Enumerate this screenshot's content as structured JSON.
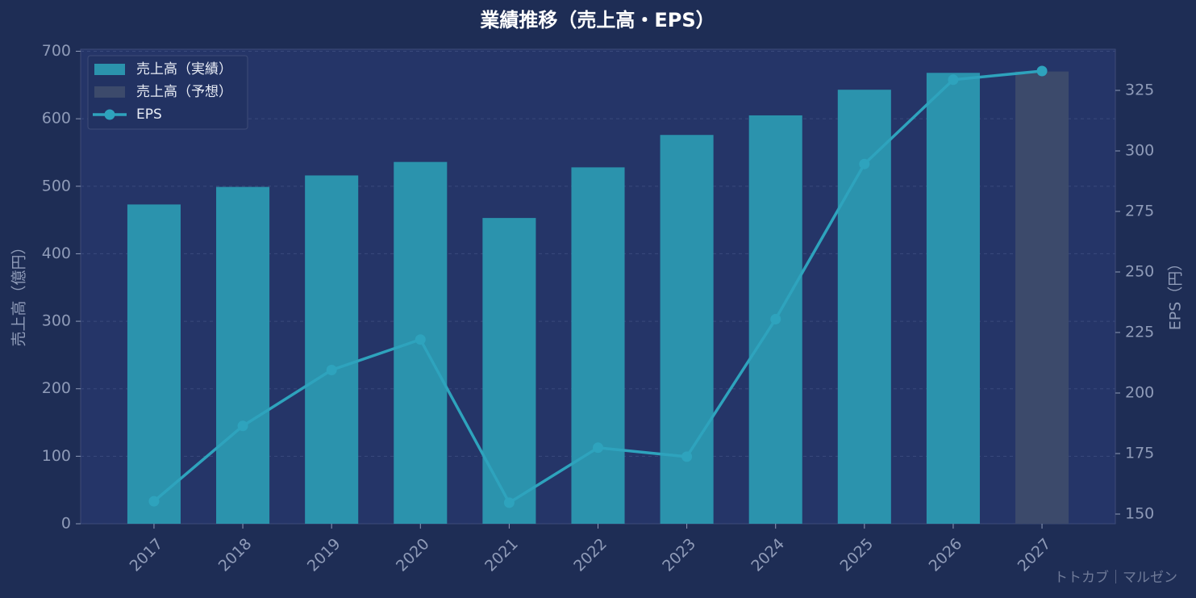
{
  "chart_data": {
    "type": "bar_line",
    "title": "業績推移（売上高・EPS）",
    "y_label": "売上高（億円）",
    "y2_label": "EPS（円）",
    "watermark": "トトカブ｜マルゼン",
    "categories": [
      "2017",
      "2018",
      "2019",
      "2020",
      "2021",
      "2022",
      "2023",
      "2024",
      "2025",
      "2026",
      "2027"
    ],
    "series": [
      {
        "name": "売上高（実績）",
        "color": "#2b93ad",
        "type": "bar",
        "values": [
          473,
          499,
          516,
          536,
          453,
          528,
          576,
          605,
          643,
          668,
          null
        ]
      },
      {
        "name": "売上高（予想）",
        "color": "#3c4a6b",
        "type": "bar",
        "values": [
          null,
          null,
          null,
          null,
          null,
          null,
          null,
          null,
          null,
          null,
          670
        ]
      },
      {
        "name": "EPS",
        "color": "#2ea3bd",
        "type": "line",
        "axis": "y2",
        "values": [
          155.3,
          186.4,
          209.5,
          222.1,
          154.7,
          177.4,
          173.7,
          230.5,
          294.6,
          329.4,
          333.0
        ]
      }
    ],
    "ylim": [
      0,
      703
    ],
    "yticks": [
      0,
      100,
      200,
      300,
      400,
      500,
      600,
      700
    ],
    "y2lim": [
      146,
      342
    ],
    "y2ticks": [
      150,
      175,
      200,
      225,
      250,
      275,
      300,
      325
    ],
    "grid": true,
    "legend": "upper left"
  }
}
